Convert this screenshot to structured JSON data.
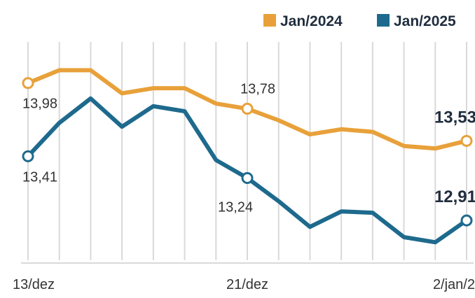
{
  "colors": {
    "jan2024": "#e8a13a",
    "jan2025": "#1e6a8d",
    "grid": "#d9d9d9",
    "background": "#ffffff"
  },
  "chart_data": {
    "type": "line",
    "title": "",
    "xlabel": "",
    "ylabel": "",
    "grid": true,
    "legend_position": "top-right",
    "x_ticks": [
      "13/dez",
      "21/dez",
      "2/jan/2"
    ],
    "ylim": [
      12.6,
      14.3
    ],
    "series": [
      {
        "name": "Jan/2024",
        "color": "#e8a13a",
        "values": [
          13.98,
          14.08,
          14.08,
          13.9,
          13.94,
          13.94,
          13.82,
          13.78,
          13.69,
          13.58,
          13.62,
          13.6,
          13.49,
          13.47,
          13.53
        ]
      },
      {
        "name": "Jan/2025",
        "color": "#1e6a8d",
        "values": [
          13.41,
          13.67,
          13.86,
          13.64,
          13.8,
          13.76,
          13.38,
          13.24,
          13.06,
          12.86,
          12.98,
          12.97,
          12.78,
          12.74,
          12.91
        ]
      }
    ],
    "tick_positions": [
      0,
      7,
      14
    ],
    "annotations": [
      {
        "series": 0,
        "index": 0,
        "text": "13,98",
        "bold": false,
        "placement": "below"
      },
      {
        "series": 0,
        "index": 7,
        "text": "13,78",
        "bold": false,
        "placement": "above"
      },
      {
        "series": 0,
        "index": 14,
        "text": "13,53",
        "bold": true,
        "placement": "above-left"
      },
      {
        "series": 1,
        "index": 0,
        "text": "13,41",
        "bold": false,
        "placement": "below"
      },
      {
        "series": 1,
        "index": 7,
        "text": "13,24",
        "bold": false,
        "placement": "below-left"
      },
      {
        "series": 1,
        "index": 14,
        "text": "12,91",
        "bold": true,
        "placement": "above-left"
      }
    ],
    "marker_indices": [
      0,
      7,
      14
    ]
  }
}
